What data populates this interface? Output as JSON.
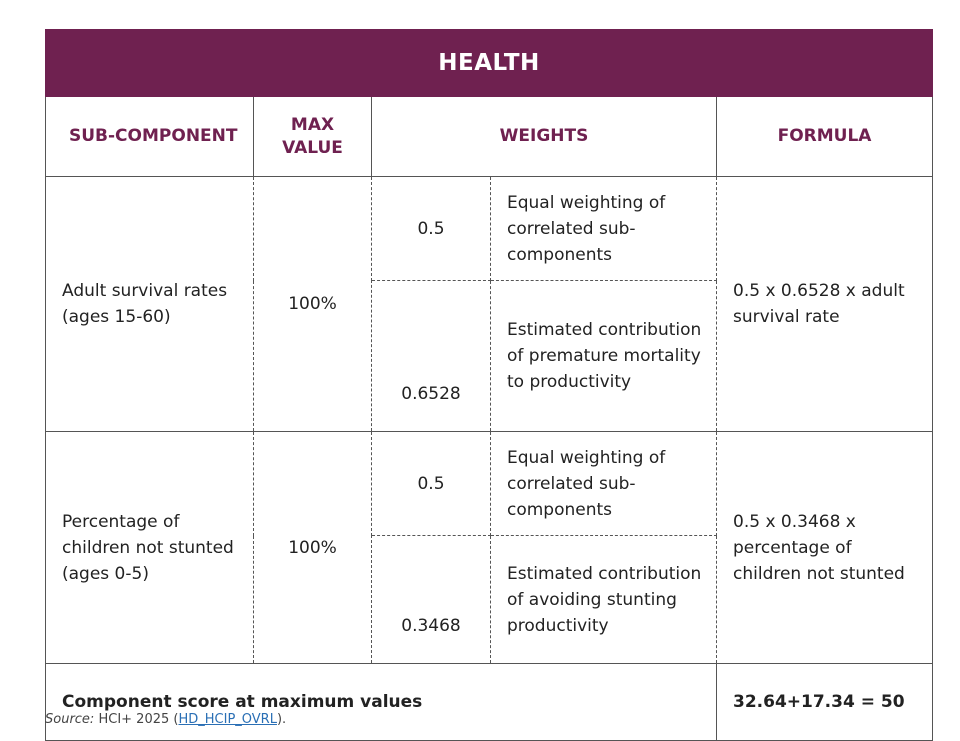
{
  "title": "HEALTH",
  "headers": {
    "sub_component": "SUB-COMPONENT",
    "max_value_line1": "MAX",
    "max_value_line2": "VALUE",
    "weights": "WEIGHTS",
    "formula": "FORMULA"
  },
  "rows": [
    {
      "sub_component": "Adult survival rates (ages 15-60)",
      "max_value": "100%",
      "weights": [
        {
          "value": "0.5",
          "description": "Equal weighting of correlated sub-components"
        },
        {
          "value": "0.6528",
          "description": "Estimated contribution of premature mortality to productivity"
        }
      ],
      "formula": "0.5 x 0.6528 x adult survival rate"
    },
    {
      "sub_component": "Percentage of children not stunted (ages 0-5)",
      "max_value": "100%",
      "weights": [
        {
          "value": "0.5",
          "description": "Equal weighting of correlated sub-components"
        },
        {
          "value": "0.3468",
          "description": "Estimated contribution of avoiding stunting productivity"
        }
      ],
      "formula": "0.5 x 0.3468 x percentage of children not stunted"
    }
  ],
  "total": {
    "label": "Component score at maximum values",
    "value": "32.64+17.34 = 50"
  },
  "source": {
    "label": "Source:",
    "text": "HCI+ 2025 (",
    "link": "HD_HCIP_OVRL",
    "suffix": ")."
  }
}
